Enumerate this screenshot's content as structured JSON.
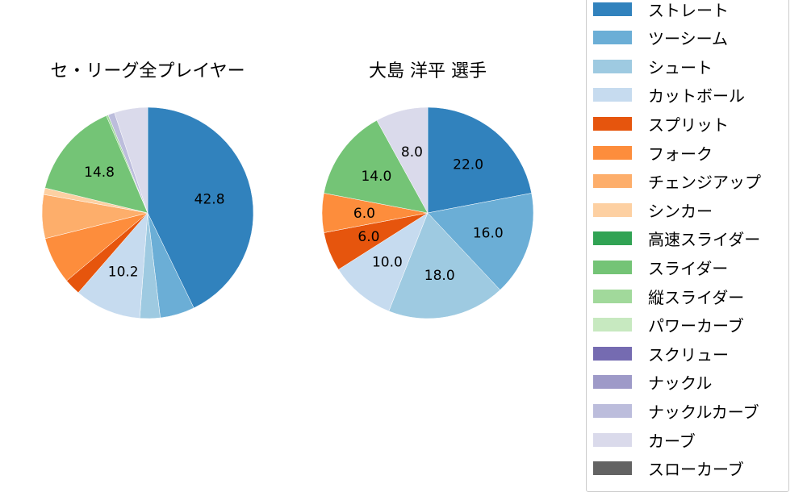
{
  "titles": {
    "left": "セ・リーグ全プレイヤー",
    "right": "大島 洋平  選手"
  },
  "legend": [
    {
      "label": "ストレート",
      "color": "#3182bd"
    },
    {
      "label": "ツーシーム",
      "color": "#6baed6"
    },
    {
      "label": "シュート",
      "color": "#9ecae1"
    },
    {
      "label": "カットボール",
      "color": "#c6dbef"
    },
    {
      "label": "スプリット",
      "color": "#e6550d"
    },
    {
      "label": "フォーク",
      "color": "#fd8d3c"
    },
    {
      "label": "チェンジアップ",
      "color": "#fdae6b"
    },
    {
      "label": "シンカー",
      "color": "#fdd0a2"
    },
    {
      "label": "高速スライダー",
      "color": "#31a354"
    },
    {
      "label": "スライダー",
      "color": "#74c476"
    },
    {
      "label": "縦スライダー",
      "color": "#a1d99b"
    },
    {
      "label": "パワーカーブ",
      "color": "#c7e9c0"
    },
    {
      "label": "スクリュー",
      "color": "#756bb1"
    },
    {
      "label": "ナックル",
      "color": "#9e9ac8"
    },
    {
      "label": "ナックルカーブ",
      "color": "#bcbddc"
    },
    {
      "label": "カーブ",
      "color": "#dadaeb"
    },
    {
      "label": "スローカーブ",
      "color": "#636363"
    }
  ],
  "chart_data": [
    {
      "type": "pie",
      "title": "セ・リーグ全プレイヤー",
      "categories": [
        "ストレート",
        "ツーシーム",
        "シュート",
        "カットボール",
        "スプリット",
        "フォーク",
        "チェンジアップ",
        "シンカー",
        "高速スライダー",
        "スライダー",
        "縦スライダー",
        "パワーカーブ",
        "スクリュー",
        "ナックル",
        "ナックルカーブ",
        "カーブ",
        "スローカーブ"
      ],
      "values": [
        42.8,
        5.3,
        3.1,
        10.2,
        2.5,
        7.2,
        6.7,
        1.0,
        0.0,
        14.8,
        0.3,
        0.0,
        0.0,
        0.0,
        1.0,
        5.1,
        0.0
      ],
      "labels_shown": {
        "ストレート": "42.8",
        "カットボール": "10.2",
        "スライダー": "14.8"
      },
      "startangle": 90,
      "direction": "clockwise"
    },
    {
      "type": "pie",
      "title": "大島 洋平  選手",
      "categories": [
        "ストレート",
        "ツーシーム",
        "シュート",
        "カットボール",
        "スプリット",
        "フォーク",
        "スライダー",
        "カーブ"
      ],
      "values": [
        22.0,
        16.0,
        18.0,
        10.0,
        6.0,
        6.0,
        14.0,
        8.0
      ],
      "labels_shown": {
        "ストレート": "22.0",
        "ツーシーム": "16.0",
        "シュート": "18.0",
        "カットボール": "10.0",
        "スプリット": "6.0",
        "フォーク": "6.0",
        "スライダー": "14.0",
        "カーブ": "8.0"
      },
      "startangle": 90,
      "direction": "clockwise"
    }
  ]
}
